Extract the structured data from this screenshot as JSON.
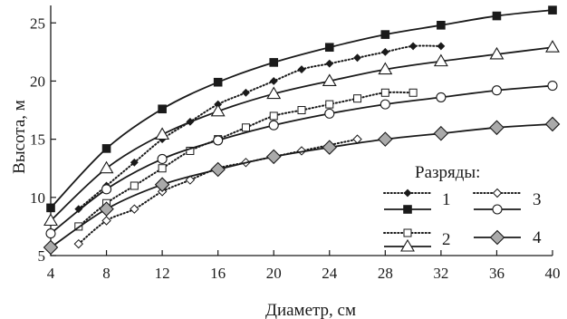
{
  "chart_data": {
    "type": "line",
    "xlabel": "Диаметр, см",
    "ylabel": "Высота, м",
    "xlim": [
      4,
      40
    ],
    "ylim": [
      5,
      26.5
    ],
    "xticks": [
      4,
      8,
      12,
      16,
      20,
      24,
      28,
      32,
      36,
      40
    ],
    "yticks": [
      5,
      10,
      15,
      20,
      25
    ],
    "grid": false,
    "legend_title": "Разряды:",
    "legend_position": "lower-right",
    "series": [
      {
        "name": "1",
        "line": "dotted",
        "marker": "diamond-filled",
        "x": [
          6,
          8,
          10,
          12,
          14,
          16,
          18,
          20,
          22,
          24,
          26,
          28,
          30,
          32
        ],
        "y": [
          9.0,
          11.0,
          13.0,
          15.0,
          16.5,
          18.0,
          19.0,
          20.0,
          21.0,
          21.5,
          22.0,
          22.5,
          23.0,
          23.0
        ]
      },
      {
        "name": "1",
        "line": "solid",
        "marker": "square-filled",
        "x": [
          4,
          8,
          12,
          16,
          20,
          24,
          28,
          32,
          36,
          40
        ],
        "y": [
          9.1,
          14.2,
          17.6,
          19.9,
          21.6,
          22.9,
          24.0,
          24.8,
          25.6,
          26.1
        ]
      },
      {
        "name": "2",
        "line": "dotted",
        "marker": "square-open",
        "x": [
          6,
          8,
          10,
          12,
          14,
          16,
          18,
          20,
          22,
          24,
          26,
          28,
          30
        ],
        "y": [
          7.5,
          9.5,
          11.0,
          12.5,
          14.0,
          15.0,
          16.0,
          17.0,
          17.5,
          18.0,
          18.5,
          19.0,
          19.0
        ]
      },
      {
        "name": "2",
        "line": "solid",
        "marker": "triangle-open",
        "x": [
          4,
          8,
          12,
          16,
          20,
          24,
          28,
          32,
          36,
          40
        ],
        "y": [
          8.0,
          12.5,
          15.4,
          17.4,
          18.9,
          20.0,
          21.0,
          21.7,
          22.3,
          22.9
        ]
      },
      {
        "name": "3",
        "line": "dotted",
        "marker": "diamond-open",
        "x": [
          6,
          8,
          10,
          12,
          14,
          16,
          18,
          20,
          22,
          24,
          26
        ],
        "y": [
          6.0,
          8.0,
          9.0,
          10.5,
          11.5,
          12.5,
          13.0,
          13.5,
          14.0,
          14.5,
          15.0
        ]
      },
      {
        "name": "3",
        "line": "solid",
        "marker": "circle-open",
        "x": [
          4,
          8,
          12,
          16,
          20,
          24,
          28,
          32,
          36,
          40
        ],
        "y": [
          6.9,
          10.7,
          13.3,
          14.9,
          16.2,
          17.2,
          18.0,
          18.6,
          19.2,
          19.6
        ]
      },
      {
        "name": "4",
        "line": "solid",
        "marker": "diamond-gray",
        "x": [
          4,
          8,
          12,
          16,
          20,
          24,
          28,
          32,
          36,
          40
        ],
        "y": [
          5.7,
          9.0,
          11.1,
          12.4,
          13.5,
          14.3,
          15.0,
          15.5,
          16.0,
          16.3
        ]
      }
    ]
  }
}
